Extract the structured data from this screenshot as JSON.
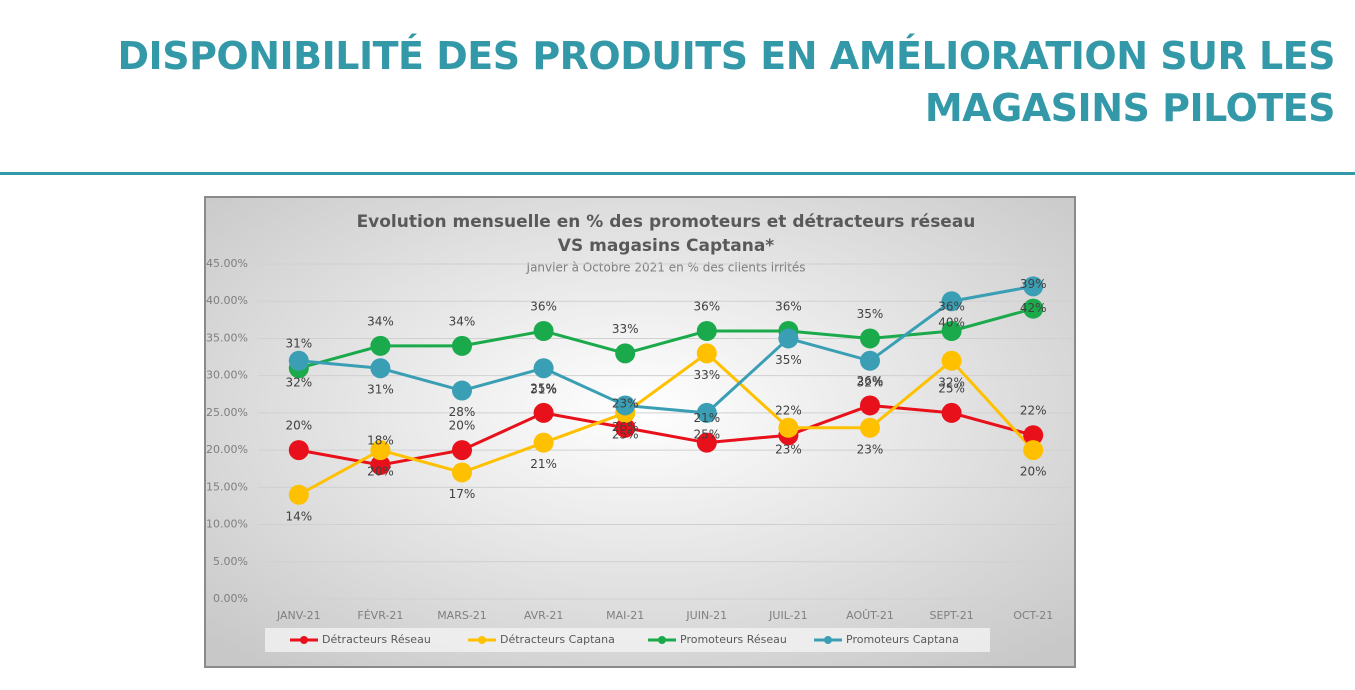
{
  "header": {
    "title": "DISPONIBILITÉ DES PRODUITS EN AMÉLIORATION SUR LES MAGASINS PILOTES"
  },
  "chart_data": {
    "type": "line",
    "title": "Evolution mensuelle en % des promoteurs et détracteurs réseau",
    "title_line2": "VS magasins Captana*",
    "subtitle": "Janvier à Octobre 2021 en % des clients irrités",
    "categories": [
      "JANV-21",
      "FÉVR-21",
      "MARS-21",
      "AVR-21",
      "MAI-21",
      "JUIN-21",
      "JUIL-21",
      "AOÛT-21",
      "SEPT-21",
      "OCT-21"
    ],
    "ylim": [
      0,
      45
    ],
    "yticks": [
      {
        "value": 0,
        "label": "0.00%"
      },
      {
        "value": 5,
        "label": "5.00%"
      },
      {
        "value": 10,
        "label": "10.00%"
      },
      {
        "value": 15,
        "label": "15.00%"
      },
      {
        "value": 20,
        "label": "20.00%"
      },
      {
        "value": 25,
        "label": "25.00%"
      },
      {
        "value": 30,
        "label": "30.00%"
      },
      {
        "value": 35,
        "label": "35.00%"
      },
      {
        "value": 40,
        "label": "40.00%"
      },
      {
        "value": 45,
        "label": "45.00%"
      }
    ],
    "grid": true,
    "legend": "bottom",
    "series": [
      {
        "name": "Détracteurs Réseau",
        "color": "#e8101a",
        "values": [
          20,
          18,
          20,
          25,
          23,
          21,
          22,
          26,
          25,
          22
        ],
        "value_labels": [
          "20%",
          "18%",
          "20%",
          "25%",
          "23%",
          "21%",
          "22%",
          "26%",
          "25%",
          "22%"
        ]
      },
      {
        "name": "Détracteurs Captana",
        "color": "#ffc000",
        "values": [
          14,
          20,
          17,
          21,
          25,
          33,
          23,
          23,
          32,
          20
        ],
        "value_labels": [
          "14%",
          "20%",
          "17%",
          "21%",
          "25%",
          "33%",
          "23%",
          "23%",
          "32%",
          "20%"
        ]
      },
      {
        "name": "Promoteurs Réseau",
        "color": "#1aaa4b",
        "values": [
          31,
          34,
          34,
          36,
          33,
          36,
          36,
          35,
          36,
          39
        ],
        "value_labels": [
          "31%",
          "34%",
          "34%",
          "36%",
          "33%",
          "36%",
          "36%",
          "35%",
          "36%",
          "39%"
        ]
      },
      {
        "name": "Promoteurs Captana",
        "color": "#3a9fb5",
        "values": [
          32,
          31,
          28,
          31,
          26,
          25,
          35,
          32,
          40,
          42
        ],
        "value_labels": [
          "32%",
          "31%",
          "28%",
          "31%",
          "26%",
          "25%",
          "35%",
          "32%",
          "40%",
          "42%"
        ]
      }
    ]
  }
}
